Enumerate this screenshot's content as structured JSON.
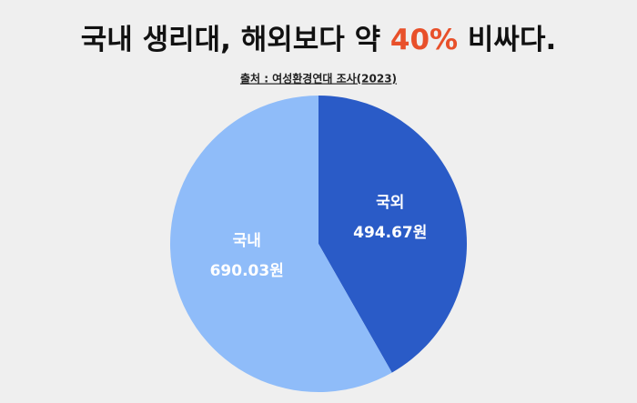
{
  "chart_data": {
    "type": "pie",
    "title": [
      "국내 생리대, 해외보다 약 ",
      "40%",
      " 비싸다."
    ],
    "title_highlight_color": "#e8502a",
    "subtitle": "출처 : 여성환경연대 조사(2023)",
    "categories": [
      "국외",
      "국내"
    ],
    "values": [
      494.67,
      690.03
    ],
    "value_labels": [
      "494.67원",
      "690.03원"
    ],
    "colors": [
      "#2a5bc7",
      "#8fbcf9"
    ]
  }
}
